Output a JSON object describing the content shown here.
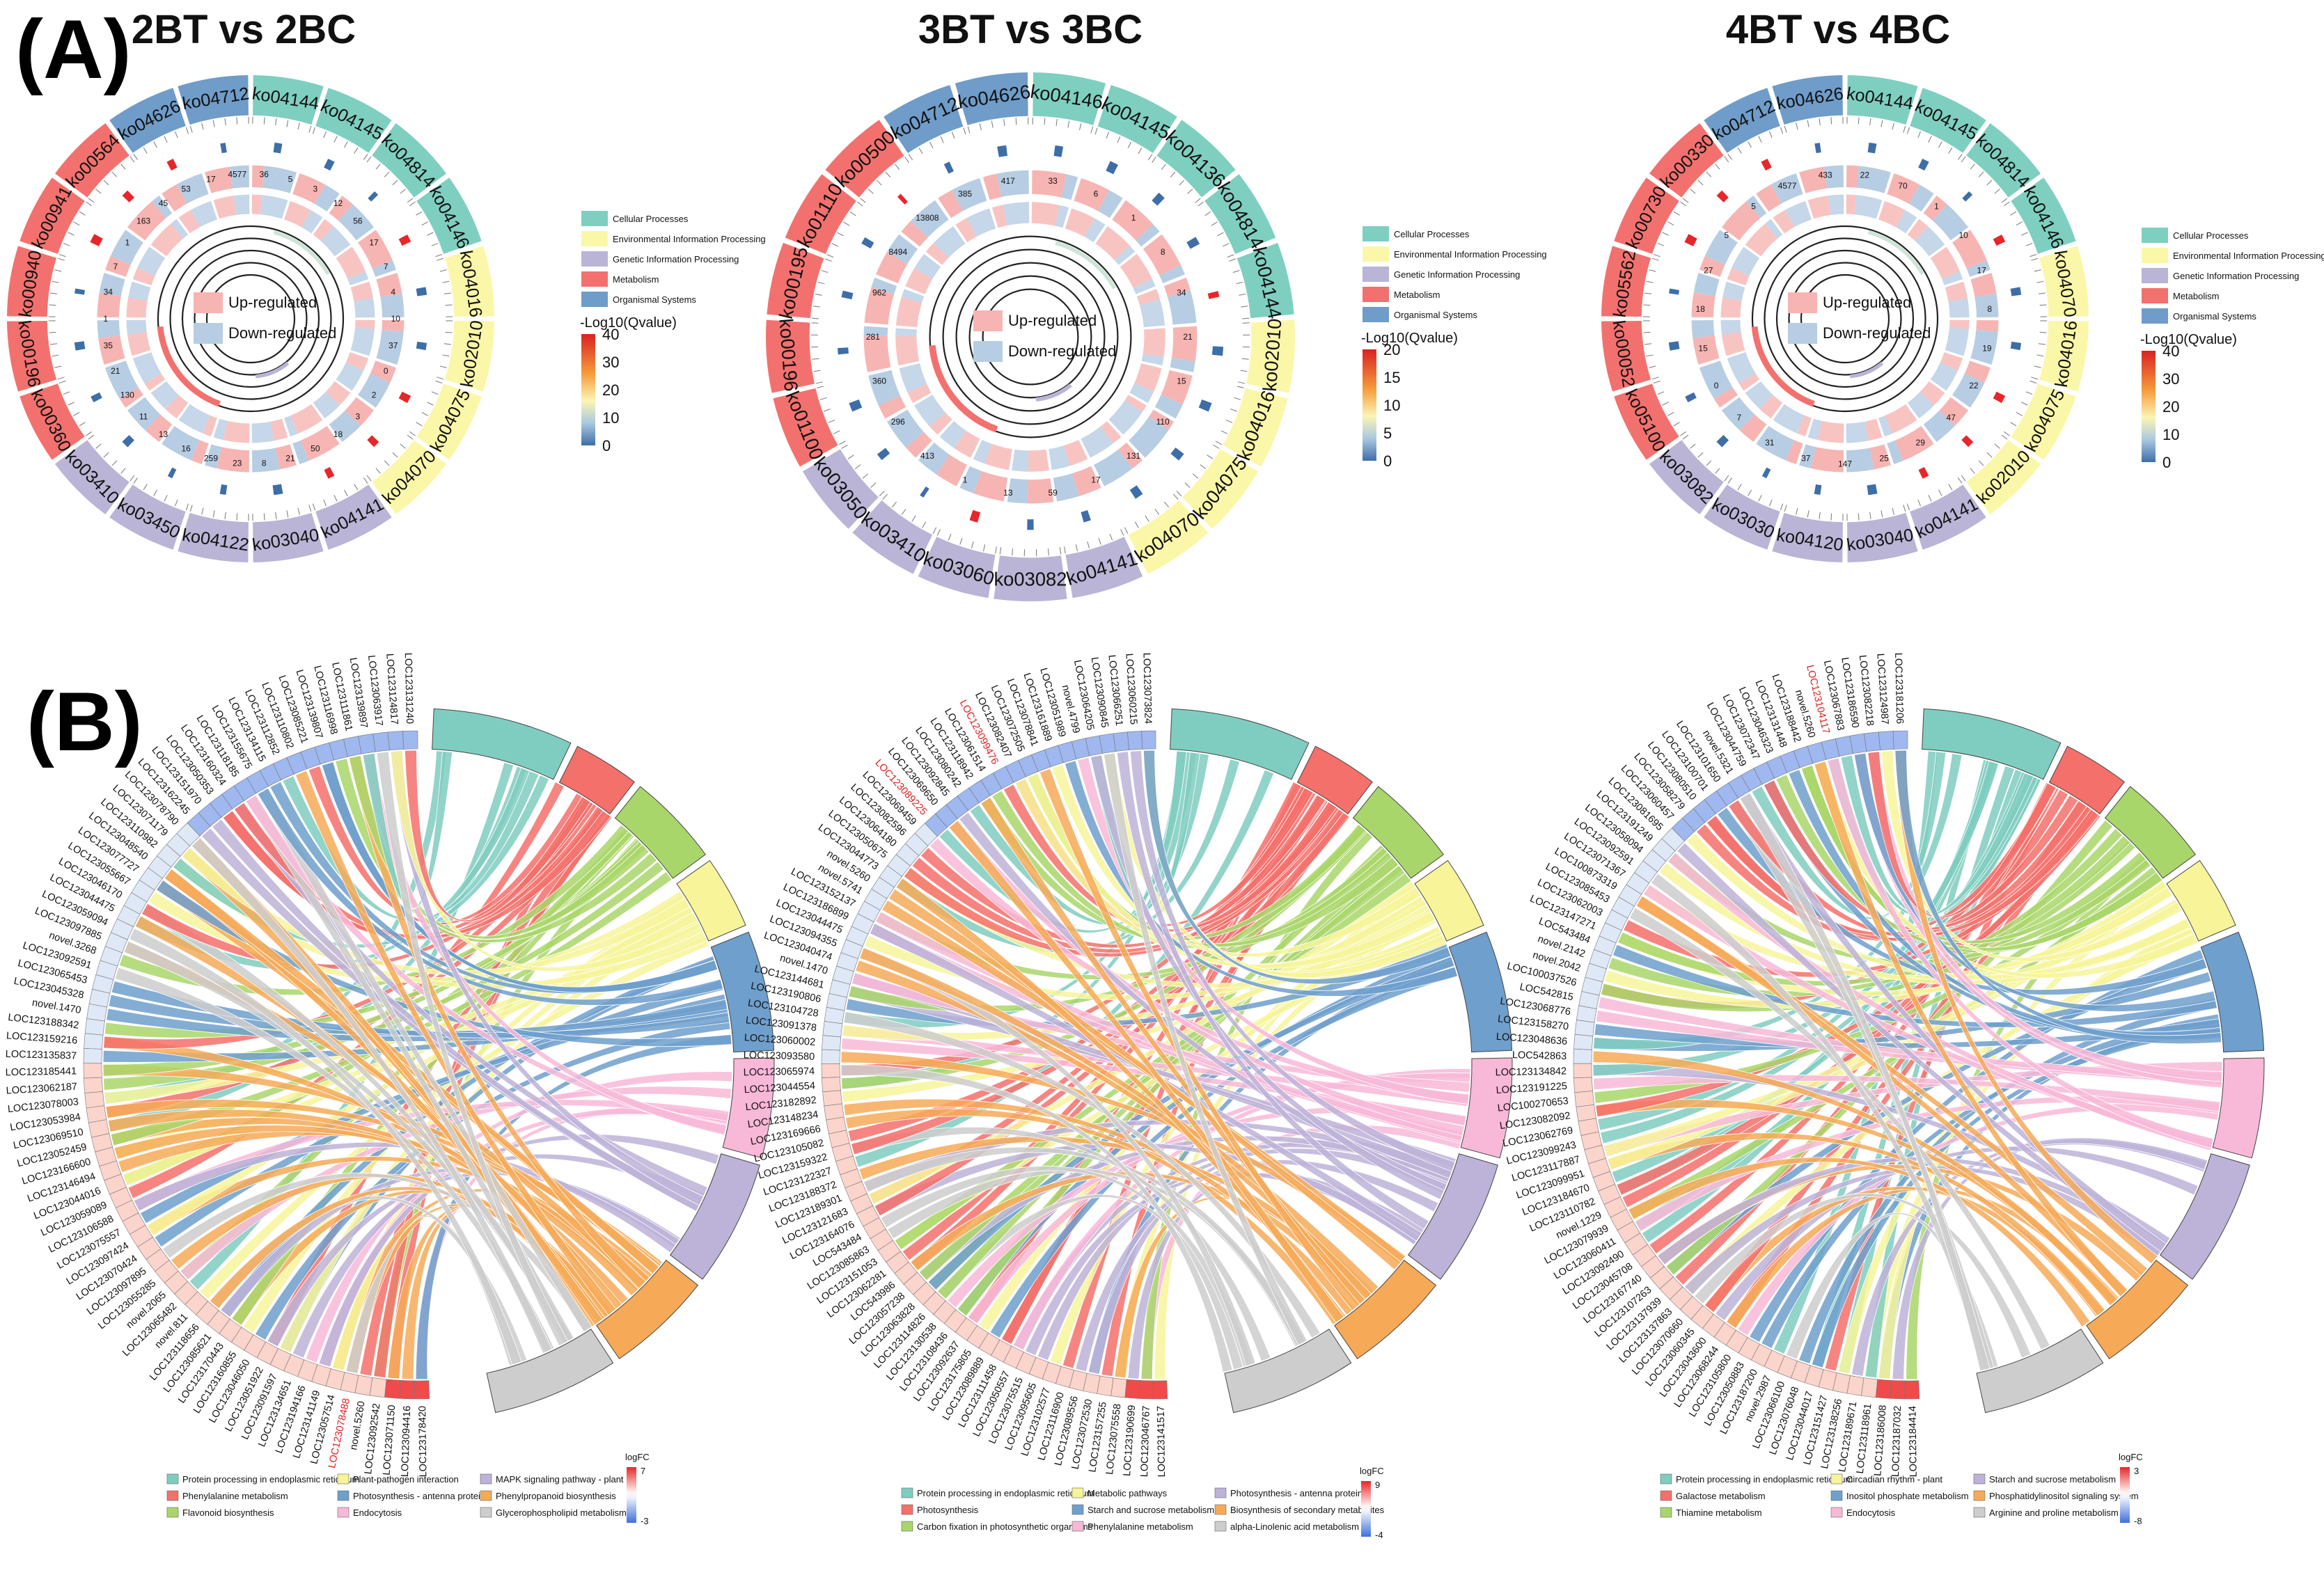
{
  "panel_labels": {
    "a": "(A)",
    "b": "(B)"
  },
  "colors": {
    "cellular": "#7fcfc0",
    "environmental": "#fbf7a8",
    "genetic": "#bab4d6",
    "metabolism": "#f2716e",
    "organismal": "#6f9cc9",
    "up": "#f6b5b3",
    "down": "#b7cde3"
  },
  "chart_data": [
    {
      "type": "circos",
      "title": "2BT vs 2BC",
      "segments": [
        {
          "id": "ko04144",
          "cls": "cellular"
        },
        {
          "id": "ko04145",
          "cls": "cellular"
        },
        {
          "id": "ko04814",
          "cls": "cellular"
        },
        {
          "id": "ko04146",
          "cls": "cellular"
        },
        {
          "id": "ko04016",
          "cls": "environmental"
        },
        {
          "id": "ko02010",
          "cls": "environmental"
        },
        {
          "id": "ko04075",
          "cls": "environmental"
        },
        {
          "id": "ko04070",
          "cls": "environmental"
        },
        {
          "id": "ko04141",
          "cls": "genetic"
        },
        {
          "id": "ko03040",
          "cls": "genetic"
        },
        {
          "id": "ko04122",
          "cls": "genetic"
        },
        {
          "id": "ko03450",
          "cls": "genetic"
        },
        {
          "id": "ko03410",
          "cls": "genetic"
        },
        {
          "id": "ko00360",
          "cls": "metabolism"
        },
        {
          "id": "ko00196",
          "cls": "metabolism"
        },
        {
          "id": "ko00940",
          "cls": "metabolism"
        },
        {
          "id": "ko00941",
          "cls": "metabolism"
        },
        {
          "id": "ko00564",
          "cls": "metabolism"
        },
        {
          "id": "ko04626",
          "cls": "organismal"
        },
        {
          "id": "ko04712",
          "cls": "organismal"
        }
      ],
      "bar_labels": [
        "36",
        "5",
        "3",
        "12",
        "56",
        "17",
        "7",
        "4",
        "10",
        "37",
        "0",
        "2",
        "3",
        "18",
        "50",
        "21",
        "8",
        "23",
        "259",
        "16",
        "13",
        "11",
        "130",
        "21",
        "35",
        "1",
        "34",
        "7",
        "1",
        "163",
        "45",
        "53",
        "17",
        "4577"
      ],
      "legend": {
        "classes": [
          "Cellular Processes",
          "Environmental Information Processing",
          "Genetic Information Processing",
          "Metabolism",
          "Organismal Systems"
        ],
        "regulation": [
          "Up-regulated",
          "Down-regulated"
        ],
        "scale_title": "-Log10(Qvalue)",
        "scale_ticks": [
          "40",
          "30",
          "20",
          "10",
          "0"
        ]
      }
    },
    {
      "type": "circos",
      "title": "3BT vs 3BC",
      "segments": [
        {
          "id": "ko04146",
          "cls": "cellular"
        },
        {
          "id": "ko04145",
          "cls": "cellular"
        },
        {
          "id": "ko04136",
          "cls": "cellular"
        },
        {
          "id": "ko04814",
          "cls": "cellular"
        },
        {
          "id": "ko04144",
          "cls": "cellular"
        },
        {
          "id": "ko02010",
          "cls": "environmental"
        },
        {
          "id": "ko04016",
          "cls": "environmental"
        },
        {
          "id": "ko04075",
          "cls": "environmental"
        },
        {
          "id": "ko04070",
          "cls": "environmental"
        },
        {
          "id": "ko04141",
          "cls": "genetic"
        },
        {
          "id": "ko03082",
          "cls": "genetic"
        },
        {
          "id": "ko03060",
          "cls": "genetic"
        },
        {
          "id": "ko03410",
          "cls": "genetic"
        },
        {
          "id": "ko03050",
          "cls": "genetic"
        },
        {
          "id": "ko01100",
          "cls": "metabolism"
        },
        {
          "id": "ko00196",
          "cls": "metabolism"
        },
        {
          "id": "ko00195",
          "cls": "metabolism"
        },
        {
          "id": "ko01110",
          "cls": "metabolism"
        },
        {
          "id": "ko00500",
          "cls": "metabolism"
        },
        {
          "id": "ko04712",
          "cls": "organismal"
        },
        {
          "id": "ko04626",
          "cls": "organismal"
        }
      ],
      "bar_labels": [
        "33",
        "6",
        "1",
        "8",
        "34",
        "21",
        "15",
        "110",
        "131",
        "17",
        "59",
        "13",
        "1",
        "413",
        "296",
        "360",
        "281",
        "962",
        "8494",
        "13808",
        "385",
        "417"
      ],
      "legend": {
        "classes": [
          "Cellular Processes",
          "Environmental Information Processing",
          "Genetic Information Processing",
          "Metabolism",
          "Organismal Systems"
        ],
        "regulation": [
          "Up-regulated",
          "Down-regulated"
        ],
        "scale_title": "-Log10(Qvalue)",
        "scale_ticks": [
          "20",
          "15",
          "10",
          "5",
          "0"
        ]
      }
    },
    {
      "type": "circos",
      "title": "4BT vs 4BC",
      "segments": [
        {
          "id": "ko04144",
          "cls": "cellular"
        },
        {
          "id": "ko04145",
          "cls": "cellular"
        },
        {
          "id": "ko04814",
          "cls": "cellular"
        },
        {
          "id": "ko04146",
          "cls": "cellular"
        },
        {
          "id": "ko04070",
          "cls": "environmental"
        },
        {
          "id": "ko04016",
          "cls": "environmental"
        },
        {
          "id": "ko04075",
          "cls": "environmental"
        },
        {
          "id": "ko02010",
          "cls": "environmental"
        },
        {
          "id": "ko04141",
          "cls": "genetic"
        },
        {
          "id": "ko03040",
          "cls": "genetic"
        },
        {
          "id": "ko04120",
          "cls": "genetic"
        },
        {
          "id": "ko03030",
          "cls": "genetic"
        },
        {
          "id": "ko03082",
          "cls": "genetic"
        },
        {
          "id": "ko05100",
          "cls": "metabolism"
        },
        {
          "id": "ko00052",
          "cls": "metabolism"
        },
        {
          "id": "ko05562",
          "cls": "metabolism"
        },
        {
          "id": "ko00730",
          "cls": "metabolism"
        },
        {
          "id": "ko00330",
          "cls": "metabolism"
        },
        {
          "id": "ko04712",
          "cls": "organismal"
        },
        {
          "id": "ko04626",
          "cls": "organismal"
        }
      ],
      "bar_labels": [
        "22",
        "70",
        "1",
        "10",
        "17",
        "8",
        "19",
        "22",
        "47",
        "29",
        "25",
        "147",
        "37",
        "31",
        "7",
        "0",
        "15",
        "18",
        "27",
        "5",
        "5",
        "4577",
        "433"
      ],
      "legend": {
        "classes": [
          "Cellular Processes",
          "Environmental Information Processing",
          "Genetic Information Processing",
          "Metabolism",
          "Organismal Systems"
        ],
        "regulation": [
          "Up-regulated",
          "Down-regulated"
        ],
        "scale_title": "-Log10(Qvalue)",
        "scale_ticks": [
          "40",
          "30",
          "20",
          "10",
          "0"
        ]
      }
    },
    {
      "type": "chord",
      "genes": [
        "LOC123178420",
        "LOC123094416",
        "LOC123071150",
        "LOC123092542",
        "novel.5260",
        "LOC123078488",
        "LOC123057514",
        "LOC123141149",
        "LOC123194166",
        "LOC123134651",
        "LOC123091597",
        "LOC123051922",
        "LOC123046050",
        "LOC123160855",
        "LOC123170443",
        "LOC123085621",
        "LOC123118656",
        "novel.811",
        "LOC123065482",
        "novel.2065",
        "LOC123055285",
        "LOC123097895",
        "LOC123070424",
        "LOC123097424",
        "LOC123075557",
        "LOC123106588",
        "LOC123059089",
        "LOC123044016",
        "LOC123146494",
        "LOC123166600",
        "LOC123052459",
        "LOC123069510",
        "LOC123053984",
        "LOC123078003",
        "LOC123062187",
        "LOC123185441",
        "LOC123135837",
        "LOC123159216",
        "LOC123188342",
        "novel.1470",
        "LOC123045328",
        "LOC123065453",
        "LOC123092591",
        "novel.3268",
        "LOC123097885",
        "LOC123059094",
        "LOC123044475",
        "LOC123046170",
        "LOC123055667",
        "LOC123077727",
        "LOC123048540",
        "LOC123110982",
        "LOC123071179",
        "LOC123078790",
        "LOC123162245",
        "LOC123151970",
        "LOC123050353",
        "LOC123160324",
        "LOC123118185",
        "LOC123155675",
        "LOC123134115",
        "LOC123112852",
        "LOC123110802",
        "LOC123085221",
        "LOC123139807",
        "LOC123116998",
        "LOC123111861",
        "LOC123139897",
        "LOC123063917",
        "LOC123124817",
        "LOC123131240"
      ],
      "red_genes": [
        5
      ],
      "pathways": [
        "Protein processing in endoplasmic reticulum",
        "Phenylalanine metabolism",
        "Flavonoid biosynthesis",
        "Plant-pathogen interaction",
        "Photosynthesis - antenna proteins",
        "Endocytosis",
        "MAPK signaling pathway - plant",
        "Phenylpropanoid biosynthesis",
        "Glycerophospholipid metabolism"
      ],
      "pathway_colors": [
        "#7fcdc0",
        "#f4706b",
        "#a9d66a",
        "#f7f49a",
        "#6f9fcc",
        "#f8b8d8",
        "#bdb3d8",
        "#f6aa58",
        "#cdcdcd"
      ],
      "logfc_title": "logFC",
      "logfc_max": "7",
      "logfc_min": "-3"
    },
    {
      "type": "chord",
      "genes": [
        "LOC123141517",
        "LOC123046767",
        "LOC123190699",
        "LOC123075558",
        "LOC123157255",
        "LOC123072530",
        "LOC123089556",
        "LOC123116900",
        "LOC123102577",
        "LOC123095605",
        "LOC123075515",
        "LOC123050557",
        "LOC123111458",
        "LOC123089889",
        "LOC123175805",
        "LOC123092637",
        "LOC123108436",
        "LOC123130538",
        "LOC123114826",
        "LOC123063828",
        "LOC123057238",
        "LOC543986",
        "LOC123062281",
        "LOC123151053",
        "LOC123085863",
        "LOC543484",
        "LOC123164076",
        "LOC123121683",
        "LOC123189301",
        "LOC123188372",
        "LOC123122327",
        "LOC123159322",
        "LOC123105082",
        "LOC123169666",
        "LOC123148234",
        "LOC123182892",
        "LOC123044554",
        "LOC123065974",
        "LOC123093580",
        "LOC123060002",
        "LOC123091378",
        "LOC123104728",
        "LOC123190806",
        "LOC123144681",
        "novel.1470",
        "LOC123040474",
        "LOC123094355",
        "LOC123044475",
        "LOC123186899",
        "LOC123152137",
        "novel.5741",
        "novel.5260",
        "LOC123044773",
        "LOC123050675",
        "LOC123064180",
        "LOC123082596",
        "LOC123069459",
        "LOC123089225",
        "LOC123069650",
        "LOC123092845",
        "LOC123080242",
        "LOC123118942",
        "LOC123061514",
        "LOC123099476",
        "LOC123082407",
        "LOC123072505",
        "LOC123078841",
        "LOC123161889",
        "LOC123051989",
        "novel.4799",
        "LOC123064205",
        "LOC123090845",
        "LOC123066251",
        "LOC123060215",
        "LOC123073824"
      ],
      "red_genes": [
        57,
        63
      ],
      "pathways": [
        "Protein processing in endoplasmic reticulum",
        "Photosynthesis",
        "Carbon fixation in photosynthetic organisms",
        "Metabolic pathways",
        "Starch and sucrose metabolism",
        "Phenylalanine metabolism",
        "Photosynthesis - antenna proteins",
        "Biosynthesis of secondary metabolites",
        "alpha-Linolenic acid metabolism"
      ],
      "pathway_colors": [
        "#7fcdc0",
        "#f4706b",
        "#a9d66a",
        "#f7f49a",
        "#6f9fcc",
        "#f8b8d8",
        "#bdb3d8",
        "#f6aa58",
        "#cdcdcd"
      ],
      "logfc_title": "logFC",
      "logfc_max": "9",
      "logfc_min": "-4"
    },
    {
      "type": "chord",
      "genes": [
        "LOC123184414",
        "LOC123187032",
        "LOC123186008",
        "LOC123118961",
        "LOC123189671",
        "LOC123138256",
        "LOC123151427",
        "LOC123044017",
        "LOC123076048",
        "LOC123066100",
        "novel.2987",
        "LOC123187200",
        "LOC123050883",
        "LOC123105800",
        "LOC123068244",
        "LOC123043600",
        "LOC123060345",
        "LOC123070660",
        "LOC123137863",
        "LOC123137939",
        "LOC123107263",
        "LOC123167740",
        "LOC123045708",
        "LOC123092490",
        "LOC123060411",
        "LOC123079939",
        "novel.1229",
        "LOC123110782",
        "LOC123184670",
        "LOC123099951",
        "LOC123117887",
        "LOC123099243",
        "LOC123062769",
        "LOC123082092",
        "LOC100270653",
        "LOC123191225",
        "LOC123134842",
        "LOC542863",
        "LOC123048636",
        "LOC123158270",
        "LOC123068776",
        "LOC542815",
        "LOC100037526",
        "novel.2042",
        "novel.2142",
        "LOC543484",
        "LOC123147271",
        "LOC123062003",
        "LOC123085453",
        "LOC100873319",
        "LOC123071367",
        "LOC123092591",
        "LOC123058094",
        "LOC123191249",
        "LOC123081695",
        "LOC123060457",
        "LOC123058279",
        "LOC123080510",
        "LOC123100701",
        "LOC123101650",
        "novel.5321",
        "LOC123044759",
        "LOC123072347",
        "LOC123046323",
        "LOC123131448",
        "LOC123188442",
        "novel.5260",
        "LOC123104117",
        "LOC123067883",
        "LOC123186590",
        "LOC123082218",
        "LOC123124987",
        "LOC123181206"
      ],
      "red_genes": [
        67
      ],
      "pathways": [
        "Protein processing in endoplasmic reticulum",
        "Galactose metabolism",
        "Thiamine metabolism",
        "Circadian rhythm - plant",
        "Inositol phosphate metabolism",
        "Endocytosis",
        "Starch and sucrose metabolism",
        "Phosphatidylinositol signaling system",
        "Arginine and proline metabolism"
      ],
      "pathway_colors": [
        "#7fcdc0",
        "#f4706b",
        "#a9d66a",
        "#f7f49a",
        "#6f9fcc",
        "#f8b8d8",
        "#bdb3d8",
        "#f6aa58",
        "#cdcdcd"
      ],
      "logfc_title": "logFC",
      "logfc_max": "3",
      "logfc_min": "-8"
    }
  ]
}
